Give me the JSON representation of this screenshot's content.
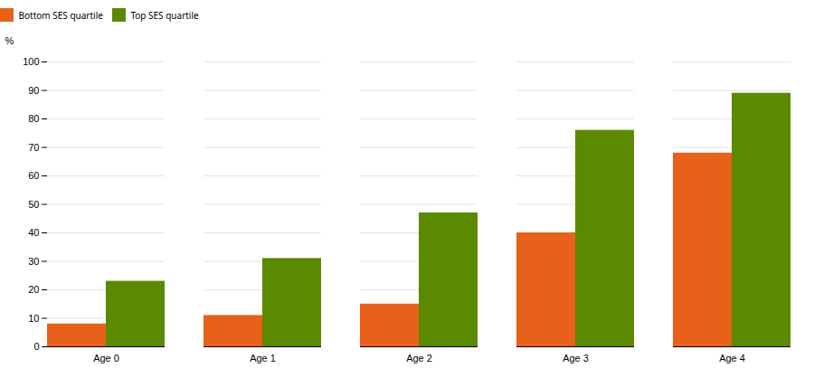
{
  "chart_data": {
    "type": "bar",
    "categories": [
      "Age 0",
      "Age 1",
      "Age 2",
      "Age 3",
      "Age 4"
    ],
    "series": [
      {
        "name": "Bottom SES quartile",
        "color": "#E8611A",
        "values": [
          8,
          11,
          15,
          40,
          68
        ]
      },
      {
        "name": "Top SES quartile",
        "color": "#5B8A00",
        "values": [
          23,
          31,
          47,
          76,
          89
        ]
      }
    ],
    "ylabel": "%",
    "ylim": [
      0,
      100
    ],
    "yticks": [
      0,
      10,
      20,
      30,
      40,
      50,
      60,
      70,
      80,
      90,
      100
    ],
    "grid": true,
    "legend": "upper left"
  }
}
